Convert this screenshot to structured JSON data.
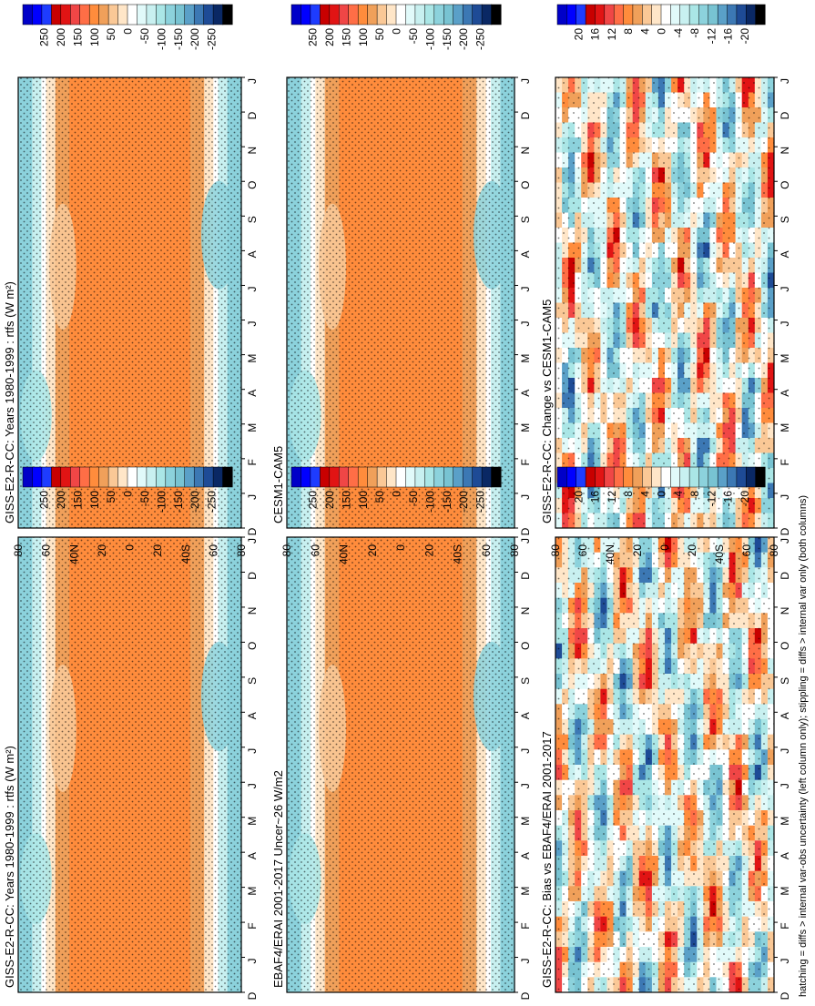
{
  "figure": {
    "footnote": "hatching = diffs > internal var-obs uncertainty (left column only); stippling = diffs > internal var only (both columns)"
  },
  "colors": {
    "abs_scale": [
      "#0000c8",
      "#0000ff",
      "#1e3cff",
      "#c80000",
      "#e11414",
      "#f04646",
      "#ff6e46",
      "#ff8c3c",
      "#f0a05a",
      "#fac896",
      "#ffe6c8",
      "#ffffff",
      "#e1fafa",
      "#c8f0f0",
      "#aae6e6",
      "#8cd2dc",
      "#78c3d2",
      "#5aa0c8",
      "#3c78b4",
      "#1e4b96",
      "#0a2864",
      "#000000"
    ],
    "diff_scale": [
      "#0000c8",
      "#0000ff",
      "#1e3cff",
      "#c80000",
      "#e11414",
      "#f04646",
      "#ff6e46",
      "#ff8c3c",
      "#f0a05a",
      "#fac896",
      "#ffe6c8",
      "#ffffff",
      "#e1fafa",
      "#c8f0f0",
      "#aae6e6",
      "#8cd2dc",
      "#78c3d2",
      "#5aa0c8",
      "#3c78b4",
      "#1e4b96",
      "#0a2864",
      "#000000"
    ]
  },
  "chart_data": [
    {
      "type": "heatmap",
      "title": "GISS-E2-R-CC: Years 1980-1999 : rtfs (W m²)",
      "x": [
        "D",
        "J",
        "F",
        "M",
        "A",
        "M",
        "J",
        "J",
        "A",
        "S",
        "O",
        "N",
        "D",
        "J"
      ],
      "y": [
        "80",
        "60",
        "40N",
        "20",
        "0",
        "20",
        "40S",
        "60",
        "80"
      ],
      "colorbar_ticks": [
        "250",
        "200",
        "150",
        "100",
        "50",
        "0",
        "-50",
        "-100",
        "-150",
        "-200",
        "-250"
      ],
      "stippled": true,
      "hatched": true
    },
    {
      "type": "heatmap",
      "title": "GISS-E2-R-CC: Years 1980-1999 : rtfs (W m²)",
      "x": [
        "D",
        "J",
        "F",
        "M",
        "A",
        "M",
        "J",
        "J",
        "A",
        "S",
        "O",
        "N",
        "D",
        "J"
      ],
      "y": [
        "80",
        "60",
        "40N",
        "20",
        "0",
        "20",
        "40S",
        "60",
        "80"
      ],
      "colorbar_ticks": [
        "250",
        "200",
        "150",
        "100",
        "50",
        "0",
        "-50",
        "-100",
        "-150",
        "-200",
        "-250"
      ],
      "stippled": true,
      "hatched": false
    },
    {
      "type": "heatmap",
      "title": "EBAF4/ERAI 2001-2017 Uncer~26 W/m2",
      "x": [
        "D",
        "J",
        "F",
        "M",
        "A",
        "M",
        "J",
        "J",
        "A",
        "S",
        "O",
        "N",
        "D",
        "J"
      ],
      "y": [
        "80",
        "60",
        "40N",
        "20",
        "0",
        "20",
        "40S",
        "60",
        "80"
      ],
      "colorbar_ticks": [
        "250",
        "200",
        "150",
        "100",
        "50",
        "0",
        "-50",
        "-100",
        "-150",
        "-200",
        "-250"
      ],
      "stippled": true,
      "hatched": false
    },
    {
      "type": "heatmap",
      "title": "CESM1-CAM5",
      "x": [
        "D",
        "J",
        "F",
        "M",
        "A",
        "M",
        "J",
        "J",
        "A",
        "S",
        "O",
        "N",
        "D",
        "J"
      ],
      "y": [
        "80",
        "60",
        "40N",
        "20",
        "0",
        "20",
        "40S",
        "60",
        "80"
      ],
      "colorbar_ticks": [
        "250",
        "200",
        "150",
        "100",
        "50",
        "0",
        "-50",
        "-100",
        "-150",
        "-200",
        "-250"
      ],
      "stippled": true,
      "hatched": false
    },
    {
      "type": "heatmap",
      "title": "GISS-E2-R-CC: Bias vs EBAF4/ERAI 2001-2017",
      "x": [
        "D",
        "J",
        "F",
        "M",
        "A",
        "M",
        "J",
        "J",
        "A",
        "S",
        "O",
        "N",
        "D",
        "J"
      ],
      "y": [
        "80",
        "60",
        "40N",
        "20",
        "0",
        "20",
        "40S",
        "60",
        "80"
      ],
      "colorbar_ticks": [
        "20",
        "16",
        "12",
        "8",
        "4",
        "0",
        "-4",
        "-8",
        "-12",
        "-16",
        "-20"
      ],
      "stippled": true,
      "hatched": false
    },
    {
      "type": "heatmap",
      "title": "GISS-E2-R-CC: Change vs CESM1-CAM5",
      "x": [
        "D",
        "J",
        "F",
        "M",
        "A",
        "M",
        "J",
        "J",
        "A",
        "S",
        "O",
        "N",
        "D",
        "J"
      ],
      "y": [
        "80",
        "60",
        "40N",
        "20",
        "0",
        "20",
        "40S",
        "60",
        "80"
      ],
      "colorbar_ticks": [
        "20",
        "16",
        "12",
        "8",
        "4",
        "0",
        "-4",
        "-8",
        "-12",
        "-16",
        "-20"
      ],
      "stippled": true,
      "hatched": false
    }
  ]
}
